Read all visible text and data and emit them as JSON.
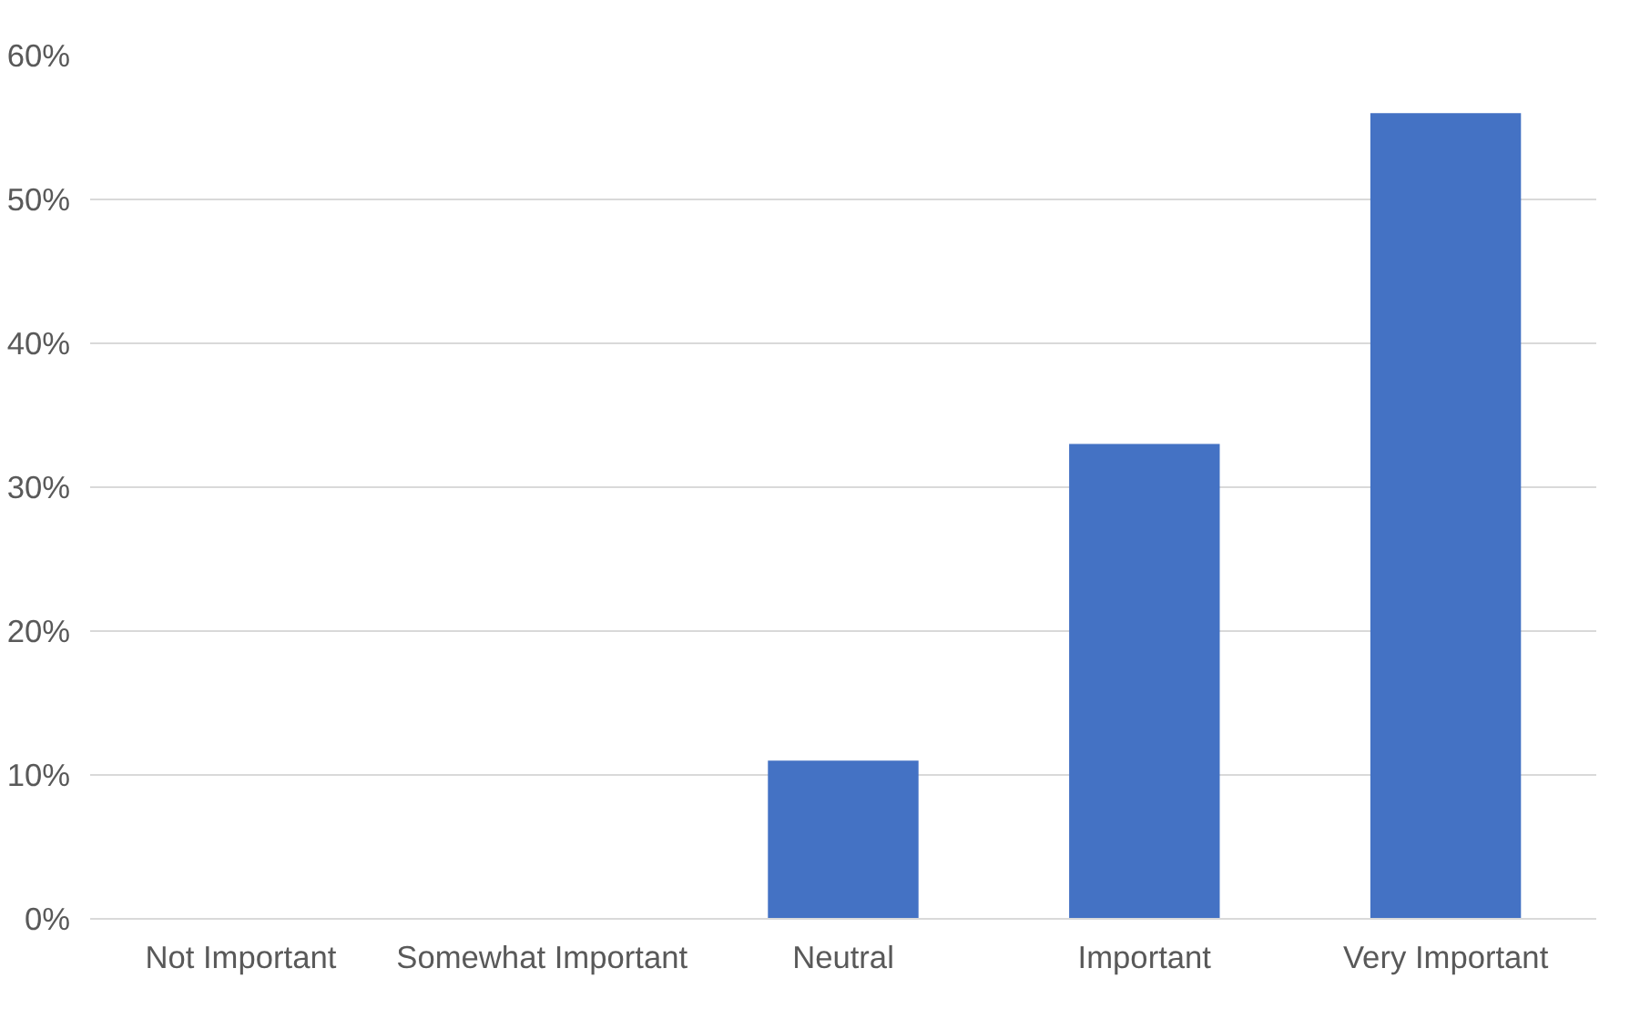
{
  "chart_data": {
    "type": "bar",
    "categories": [
      "Not Important",
      "Somewhat Important",
      "Neutral",
      "Important",
      "Very Important"
    ],
    "values": [
      0,
      0,
      11,
      33,
      56
    ],
    "color": "#4472c4",
    "ylim": [
      0,
      60
    ],
    "yticks": [
      {
        "value": 0,
        "label": "0%"
      },
      {
        "value": 10,
        "label": "10%"
      },
      {
        "value": 20,
        "label": "20%"
      },
      {
        "value": 30,
        "label": "30%"
      },
      {
        "value": 40,
        "label": "40%"
      },
      {
        "value": 50,
        "label": "50%"
      },
      {
        "value": 60,
        "label": "60%"
      }
    ],
    "grid": "y"
  }
}
